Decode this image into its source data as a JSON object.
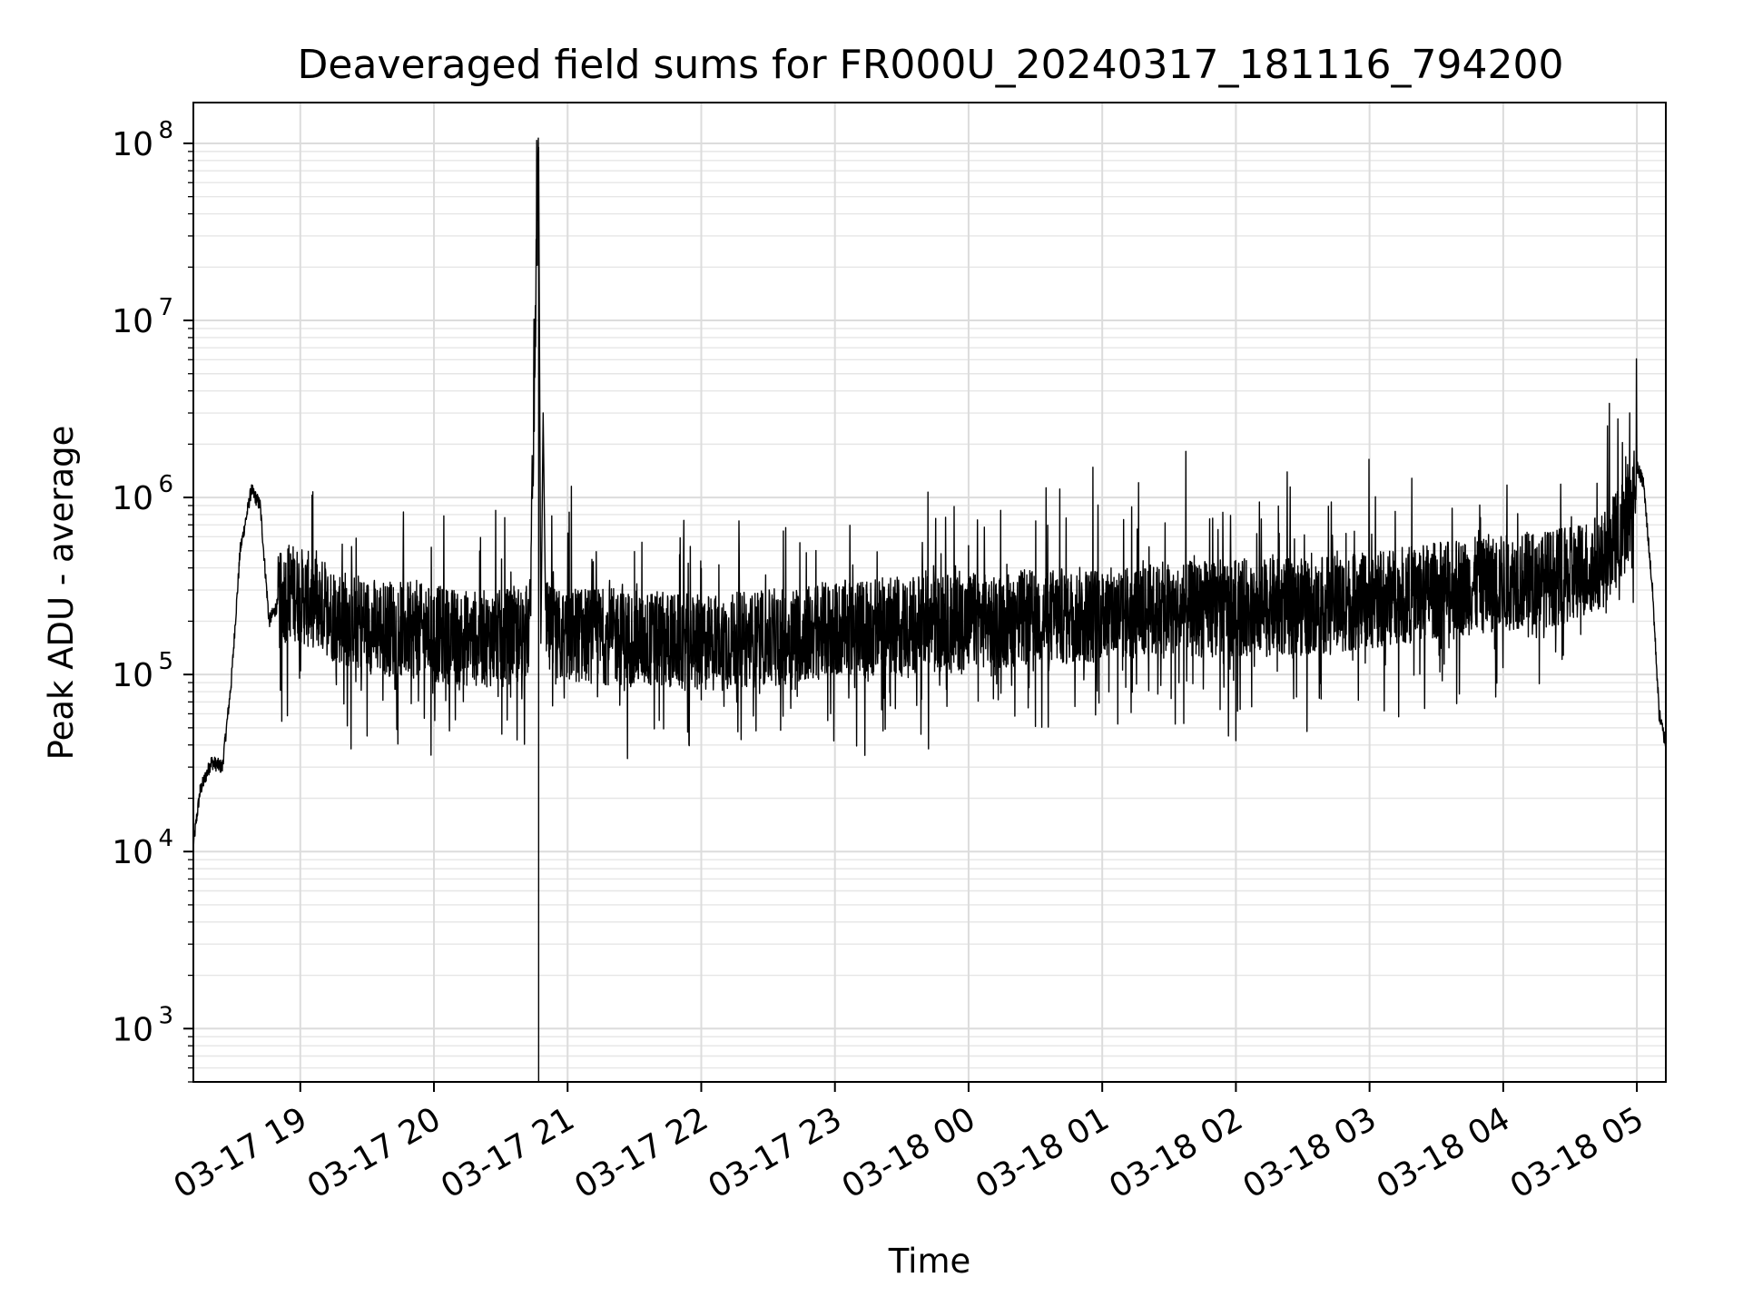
{
  "chart_data": {
    "type": "line",
    "title": "Deaveraged field sums for FR000U_20240317_181116_794200",
    "xlabel": "Time",
    "ylabel": "Peak ADU - average",
    "yscale": "log",
    "ylim": [
      500,
      170000000
    ],
    "xlim": [
      "03-17 18:12",
      "03-18 05:13"
    ],
    "grid": true,
    "x_ticks": [
      "03-17 19",
      "03-17 20",
      "03-17 21",
      "03-17 22",
      "03-17 23",
      "03-18 00",
      "03-18 01",
      "03-18 02",
      "03-18 03",
      "03-18 04",
      "03-18 05"
    ],
    "y_ticks": [
      {
        "value": 1000,
        "base": "10",
        "exp": "3"
      },
      {
        "value": 10000,
        "base": "10",
        "exp": "4"
      },
      {
        "value": 100000,
        "base": "10",
        "exp": "5"
      },
      {
        "value": 1000000,
        "base": "10",
        "exp": "6"
      },
      {
        "value": 10000000,
        "base": "10",
        "exp": "7"
      },
      {
        "value": 100000000,
        "base": "10",
        "exp": "8"
      }
    ],
    "series": [
      {
        "color": "#000000",
        "x": [
          "03-17 18:12",
          "03-17 18:15",
          "03-17 18:20",
          "03-17 18:25",
          "03-17 18:29",
          "03-17 18:33",
          "03-17 18:38",
          "03-17 18:42",
          "03-17 18:46",
          "03-17 18:50",
          "03-17 18:55",
          "03-17 19:00",
          "03-17 19:15",
          "03-17 19:30",
          "03-17 19:45",
          "03-17 20:00",
          "03-17 20:15",
          "03-17 20:30",
          "03-17 20:38",
          "03-17 20:43",
          "03-17 20:47",
          "03-17 20:48",
          "03-17 20:49",
          "03-17 20:50",
          "03-17 20:55",
          "03-17 21:00",
          "03-17 21:30",
          "03-17 22:00",
          "03-17 22:30",
          "03-17 23:00",
          "03-17 23:30",
          "03-18 00:00",
          "03-18 00:30",
          "03-18 01:00",
          "03-18 01:30",
          "03-18 02:00",
          "03-18 02:30",
          "03-18 03:00",
          "03-18 03:30",
          "03-18 04:00",
          "03-18 04:30",
          "03-18 04:45",
          "03-18 04:55",
          "03-18 05:00",
          "03-18 05:03",
          "03-18 05:07",
          "03-18 05:10",
          "03-18 05:13"
        ],
        "y": [
          11000,
          22000,
          32000,
          30000,
          90000,
          500000,
          1100000,
          900000,
          200000,
          250000,
          300000,
          280000,
          220000,
          190000,
          180000,
          170000,
          160000,
          160000,
          170000,
          180000,
          95000000,
          150000,
          3000000,
          180000,
          160000,
          170000,
          160000,
          150000,
          160000,
          180000,
          190000,
          200000,
          210000,
          220000,
          230000,
          240000,
          240000,
          260000,
          300000,
          330000,
          360000,
          450000,
          700000,
          1500000,
          1200000,
          300000,
          60000,
          40000
        ]
      }
    ]
  }
}
